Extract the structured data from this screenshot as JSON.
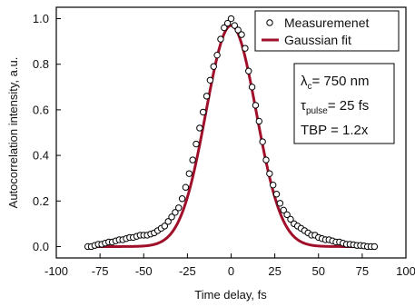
{
  "chart_data": {
    "type": "scatter",
    "title": "",
    "xlabel": "Time delay, fs",
    "ylabel": "Autocorrelation intensity, a.u.",
    "xlim": [
      -100,
      100
    ],
    "ylim": [
      -0.05,
      1.05
    ],
    "x_ticks": [
      -100,
      -75,
      -50,
      -25,
      0,
      25,
      50,
      75,
      100
    ],
    "x_tick_labels": [
      "-100",
      "-75",
      "-50",
      "-25",
      "0",
      "25",
      "50",
      "75",
      "100"
    ],
    "y_ticks": [
      0.0,
      0.2,
      0.4,
      0.6,
      0.8,
      1.0
    ],
    "y_tick_labels": [
      "0.0",
      "0.2",
      "0.4",
      "0.6",
      "0.8",
      "1.0"
    ],
    "legend_position": "top-right",
    "series": [
      {
        "name": "Measuremenet",
        "kind": "scatter",
        "marker": "open-circle",
        "color": "#000000",
        "x": [
          -82,
          -80,
          -78,
          -76,
          -74,
          -72,
          -70,
          -68,
          -66,
          -64,
          -62,
          -60,
          -58,
          -56,
          -54,
          -52,
          -50,
          -48,
          -46,
          -44,
          -42,
          -40,
          -38,
          -36,
          -34,
          -32,
          -30,
          -28,
          -26,
          -24,
          -22,
          -20,
          -18,
          -16,
          -14,
          -12,
          -10,
          -8,
          -6,
          -4,
          -2,
          0,
          2,
          4,
          6,
          8,
          10,
          12,
          14,
          16,
          18,
          20,
          22,
          24,
          26,
          28,
          30,
          32,
          34,
          36,
          38,
          40,
          42,
          44,
          46,
          48,
          50,
          52,
          54,
          56,
          58,
          60,
          62,
          64,
          66,
          68,
          70,
          72,
          74,
          76,
          78,
          80,
          82
        ],
        "y": [
          0.0,
          0.0,
          0.005,
          0.01,
          0.01,
          0.015,
          0.02,
          0.02,
          0.025,
          0.03,
          0.03,
          0.035,
          0.04,
          0.04,
          0.045,
          0.05,
          0.05,
          0.05,
          0.055,
          0.06,
          0.07,
          0.08,
          0.09,
          0.11,
          0.13,
          0.15,
          0.17,
          0.21,
          0.26,
          0.32,
          0.38,
          0.45,
          0.52,
          0.59,
          0.66,
          0.73,
          0.79,
          0.84,
          0.91,
          0.96,
          0.98,
          1.0,
          0.97,
          0.95,
          0.93,
          0.87,
          0.77,
          0.7,
          0.62,
          0.55,
          0.46,
          0.38,
          0.32,
          0.27,
          0.23,
          0.19,
          0.16,
          0.14,
          0.12,
          0.1,
          0.09,
          0.08,
          0.07,
          0.06,
          0.05,
          0.05,
          0.04,
          0.035,
          0.03,
          0.03,
          0.025,
          0.02,
          0.02,
          0.015,
          0.01,
          0.01,
          0.008,
          0.005,
          0.005,
          0.003,
          0.0,
          0.0,
          0.0
        ]
      },
      {
        "name": "Gaussian fit",
        "kind": "line",
        "color": "#a0102a",
        "function": "gaussian",
        "amplitude": 0.97,
        "center": 0,
        "fwhm": 34,
        "x_range": [
          -82,
          82
        ]
      }
    ],
    "annotations": [
      {
        "text": "λ",
        "sub": "c",
        "after": "= 750 nm"
      },
      {
        "text": "τ",
        "sub": "pulse",
        "after": "= 25 fs"
      },
      {
        "text": "TBP = 1.2x",
        "sub": "",
        "after": ""
      }
    ]
  }
}
